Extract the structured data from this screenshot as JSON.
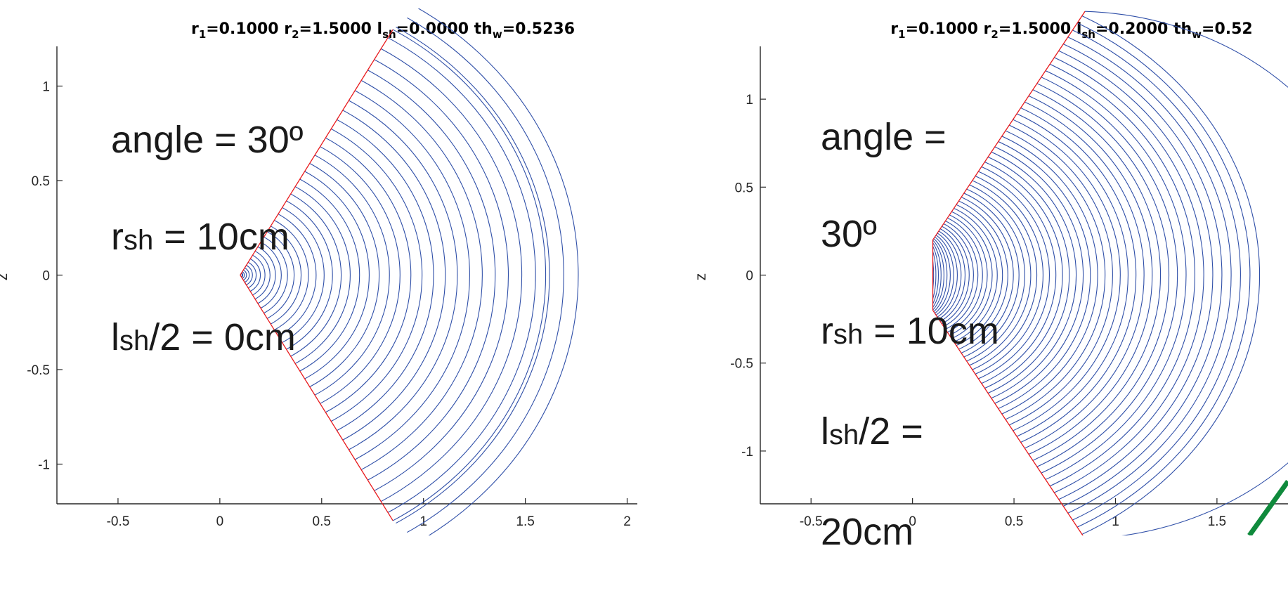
{
  "colors": {
    "contour": "#2f4fa8",
    "boundary": "#e8191c",
    "axis": "#262626",
    "accent_line": "#0f8a3c"
  },
  "chart_data": [
    {
      "type": "line",
      "title": {
        "r1": "0.1000",
        "r2": "1.5000",
        "lsh": "0.0000",
        "thw": "0.5236"
      },
      "xlabel": "",
      "ylabel": "z",
      "xlim": [
        -0.8,
        2.05
      ],
      "ylim": [
        -1.21,
        1.21
      ],
      "xticks": [
        "-0.5",
        "0",
        "0.5",
        "1",
        "1.5",
        "2"
      ],
      "yticks": [
        "-1",
        "-0.5",
        "0",
        "0.5",
        "1"
      ],
      "geometry": {
        "r1": 0.1,
        "r2": 1.5,
        "lsh_half": 0.0,
        "angle_rad": 0.5236,
        "n_arcs": 40
      },
      "annotation": {
        "line1": "angle = 30º",
        "r_prefix": "r",
        "r_sub": "sh",
        "r_value": " = 10cm",
        "l_prefix": "l",
        "l_sub": "sh",
        "l_value": "/2 = 0cm"
      }
    },
    {
      "type": "line",
      "title": {
        "r1": "0.1000",
        "r2": "1.5000",
        "lsh": "0.2000",
        "thw": "0.52"
      },
      "xlabel": "",
      "ylabel": "z",
      "xlim": [
        -0.75,
        1.85
      ],
      "ylim": [
        -1.3,
        1.3
      ],
      "xticks": [
        "-0.5",
        "0",
        "0.5",
        "1",
        "1.5"
      ],
      "yticks": [
        "-1",
        "-0.5",
        "0",
        "0.5",
        "1"
      ],
      "geometry": {
        "r1": 0.1,
        "r2": 1.5,
        "lsh_half": 0.2,
        "angle_rad": 0.5236,
        "n_arcs": 60
      },
      "annotation": {
        "line1": "angle =",
        "line2": "30º",
        "r_prefix": "r",
        "r_sub": "sh",
        "r_value": " = 10cm",
        "l_prefix": "l",
        "l_sub": "sh",
        "l_value": "/2 =",
        "line5": "20cm"
      }
    }
  ]
}
